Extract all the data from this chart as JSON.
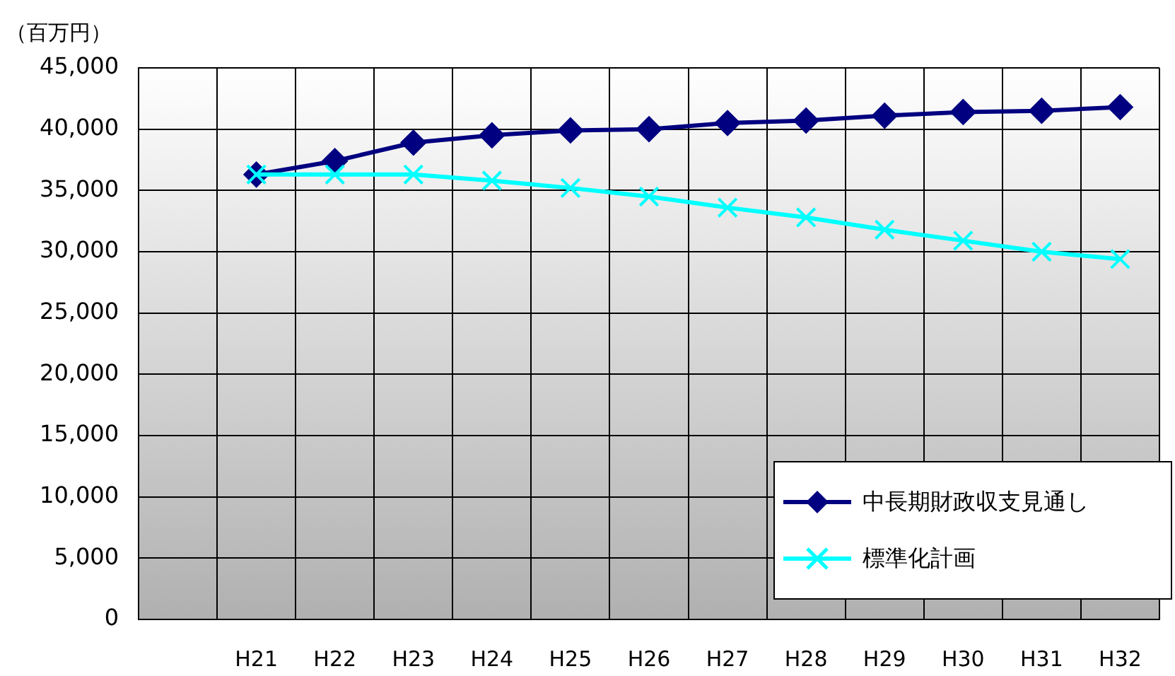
{
  "chart_data": {
    "type": "line",
    "ylabel": "（百万円）",
    "categories": [
      null,
      "H21",
      "H22",
      "H23",
      "H24",
      "H25",
      "H26",
      "H27",
      "H28",
      "H29",
      "H30",
      "H31",
      "H32"
    ],
    "series": [
      {
        "name": "中長期財政収支見通し",
        "color": "#000080",
        "marker": "diamond",
        "values": [
          null,
          36300,
          37400,
          38900,
          39500,
          39900,
          40000,
          40500,
          40700,
          41100,
          41400,
          41500,
          41800
        ]
      },
      {
        "name": "標準化計画",
        "color": "#00ffff",
        "marker": "cross",
        "values": [
          null,
          36300,
          36300,
          36300,
          35800,
          35200,
          34500,
          33600,
          32800,
          31800,
          30900,
          30000,
          29400
        ]
      }
    ],
    "ylim": [
      0,
      45000
    ],
    "yticks": [
      0,
      {
        "value": 5000,
        "label": "5,000"
      },
      {
        "value": 10000,
        "label": "10,000"
      },
      {
        "value": 15000,
        "label": "15,000"
      },
      {
        "value": 20000,
        "label": "20,000"
      },
      {
        "value": 25000,
        "label": "25,000"
      },
      {
        "value": 30000,
        "label": "30,000"
      },
      {
        "value": 35000,
        "label": "35,000"
      },
      {
        "value": 40000,
        "label": "40,000"
      },
      {
        "value": 45000,
        "label": "45,000"
      }
    ],
    "grid": true,
    "legend": "bottom right",
    "line_style": "solid"
  }
}
